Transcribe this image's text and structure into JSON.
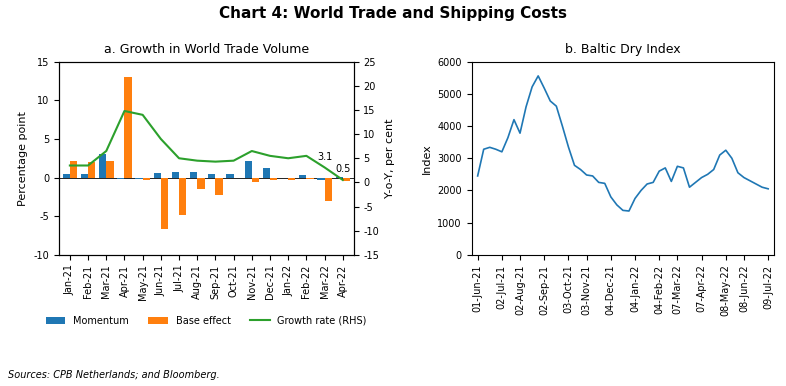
{
  "title": "Chart 4: World Trade and Shipping Costs",
  "source": "Sources: CPB Netherlands; and Bloomberg.",
  "chart_data": [
    {
      "type": "bar",
      "title": "a. Growth in World Trade Volume",
      "categories": [
        "Jan-21",
        "Feb-21",
        "Mar-21",
        "Apr-21",
        "May-21",
        "Jun-21",
        "Jul-21",
        "Aug-21",
        "Sep-21",
        "Oct-21",
        "Nov-21",
        "Dec-21",
        "Jan-22",
        "Feb-22",
        "Mar-22",
        "Apr-22"
      ],
      "series": [
        {
          "name": "Momentum",
          "values": [
            0.5,
            0.4,
            3.0,
            -0.2,
            -0.2,
            0.6,
            0.7,
            0.7,
            0.4,
            0.5,
            2.2,
            1.3,
            -0.1,
            0.3,
            -0.3,
            0.1
          ]
        },
        {
          "name": "Base effect",
          "values": [
            2.2,
            2.0,
            2.1,
            13.0,
            -0.3,
            -6.6,
            -4.8,
            -1.5,
            -2.2,
            -0.1,
            -0.6,
            -0.3,
            -0.3,
            -0.2,
            -3.0,
            -0.5
          ]
        },
        {
          "name": "Growth rate (RHS)",
          "type": "line",
          "axis": "y2",
          "values": [
            3.5,
            3.5,
            6.5,
            14.8,
            14.0,
            9.0,
            5.0,
            4.5,
            4.3,
            4.5,
            6.5,
            5.5,
            5.0,
            5.5,
            3.1,
            0.5
          ]
        }
      ],
      "ylabel": "Percentage point",
      "y2label": "Y-o-Y, per cent",
      "ylim": [
        -10,
        15
      ],
      "yticks": [
        -10,
        -5,
        0,
        5,
        10,
        15
      ],
      "y2lim": [
        -15,
        25
      ],
      "y2ticks": [
        -15,
        -10,
        -5,
        0,
        5,
        10,
        15,
        20,
        25
      ],
      "legend": "lower center",
      "annotations": [
        {
          "text": "3.1",
          "x": "Mar-22",
          "y": 3.1,
          "axis": "y2"
        },
        {
          "text": "0.5",
          "x": "Apr-22",
          "y": 0.5,
          "axis": "y2"
        }
      ]
    },
    {
      "type": "line",
      "title": "b. Baltic Dry Index",
      "categories": [
        "01-Jun-21",
        null,
        null,
        null,
        "02-Jul-21",
        null,
        null,
        "02-Aug-21",
        null,
        null,
        null,
        "02-Sep-21",
        null,
        null,
        null,
        "03-Oct-21",
        null,
        null,
        "03-Nov-21",
        null,
        null,
        null,
        "04-Dec-21",
        null,
        null,
        null,
        "04-Jan-22",
        null,
        null,
        null,
        "04-Feb-22",
        null,
        null,
        "07-Mar-22",
        null,
        null,
        null,
        "07-Apr-22",
        null,
        null,
        null,
        "08-May-22",
        null,
        null,
        "08-Jun-22",
        null,
        null,
        null,
        "09-Jul-22"
      ],
      "values": [
        2450,
        3280,
        3340,
        3280,
        3200,
        3640,
        4200,
        3780,
        4600,
        5220,
        5560,
        5180,
        4780,
        4620,
        4000,
        3350,
        2780,
        2650,
        2480,
        2450,
        2250,
        2220,
        1800,
        1550,
        1380,
        1360,
        1750,
        2000,
        2200,
        2250,
        2600,
        2700,
        2280,
        2750,
        2700,
        2100,
        2250,
        2400,
        2500,
        2650,
        3100,
        3250,
        3000,
        2550,
        2400,
        2300,
        2200,
        2100,
        2050
      ],
      "ylabel": "Index",
      "ylim": [
        0,
        6000
      ],
      "yticks": [
        0,
        1000,
        2000,
        3000,
        4000,
        5000,
        6000
      ]
    }
  ]
}
